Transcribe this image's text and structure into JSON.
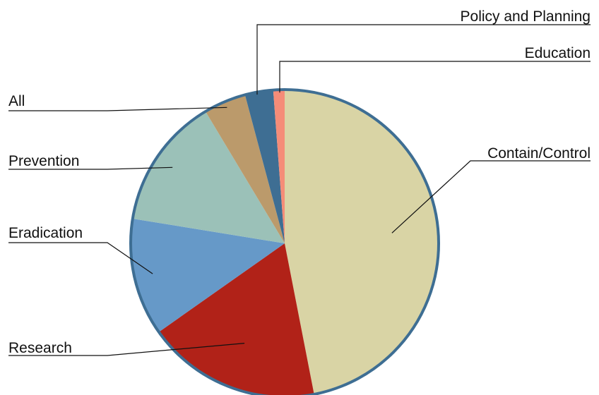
{
  "chart_data": {
    "type": "pie",
    "title": "",
    "legend": "none",
    "slices": [
      {
        "label": "Contain/Control",
        "value": 47.5,
        "color": "#d9d4a5"
      },
      {
        "label": "Research",
        "value": 18.5,
        "color": "#b12218"
      },
      {
        "label": "Eradication",
        "value": 12.5,
        "color": "#6699c8"
      },
      {
        "label": "Prevention",
        "value": 14.0,
        "color": "#9bc1b8"
      },
      {
        "label": "All",
        "value": 4.5,
        "color": "#bb9a6b"
      },
      {
        "label": "Policy and Planning",
        "value": 3.0,
        "color": "#3e6e93"
      },
      {
        "label": "Education",
        "value": 1.2,
        "color": "#f58c78"
      }
    ]
  }
}
